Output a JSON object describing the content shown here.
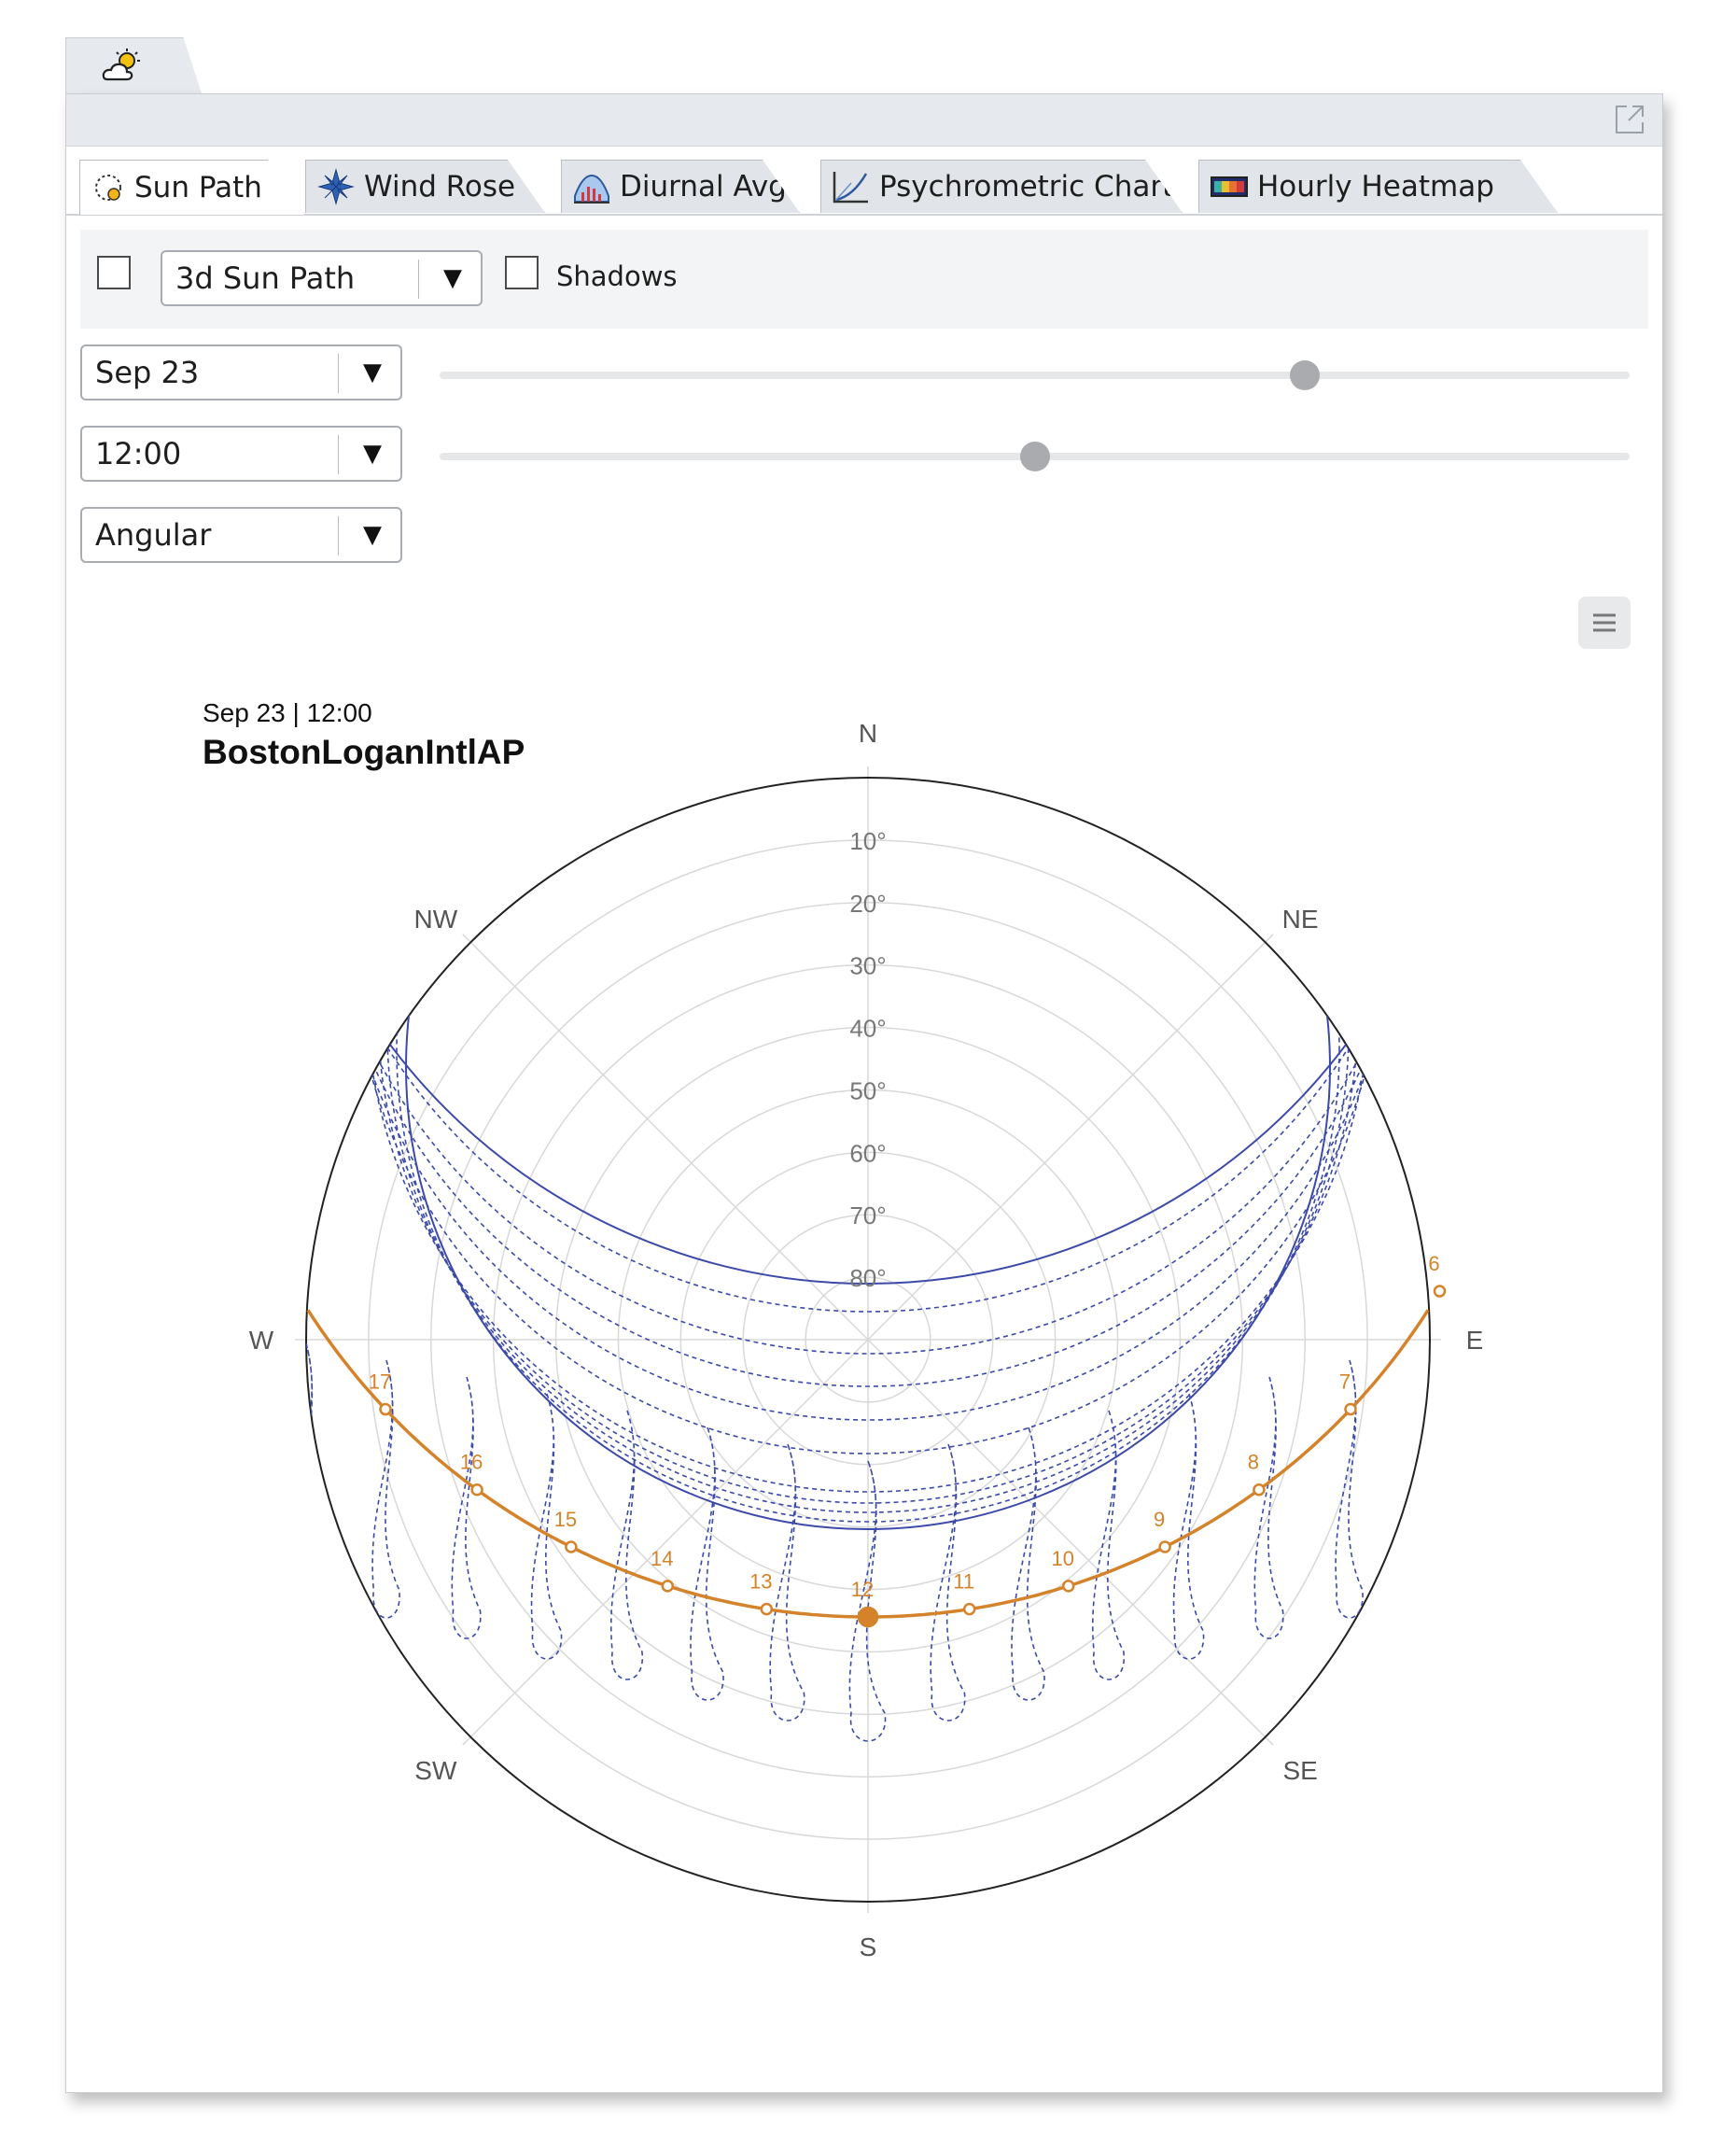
{
  "tabs": [
    {
      "label": "Sun Path",
      "icon": "sun-path-icon",
      "active": true
    },
    {
      "label": "Wind Rose",
      "icon": "wind-rose-icon",
      "active": false
    },
    {
      "label": "Diurnal Avg",
      "icon": "diurnal-avg-icon",
      "active": false
    },
    {
      "label": "Psychrometric Chart",
      "icon": "psychrometric-icon",
      "active": false
    },
    {
      "label": "Hourly Heatmap",
      "icon": "heatmap-icon",
      "active": false
    }
  ],
  "controls": {
    "view_mode": {
      "value": "3d Sun Path",
      "checked": false
    },
    "shadows": {
      "label": "Shadows",
      "checked": false
    },
    "date": {
      "value": "Sep 23",
      "slider_fraction": 0.727
    },
    "time": {
      "value": "12:00",
      "slider_fraction": 0.5
    },
    "projection": {
      "value": "Angular"
    }
  },
  "chart_data": {
    "type": "scatter",
    "projection": "polar (angular) sun path diagram",
    "subtitle": "Sep 23 | 12:00",
    "title": "BostonLoganIntlAP",
    "compass_labels": [
      "N",
      "NE",
      "E",
      "SE",
      "S",
      "SW",
      "W",
      "NW"
    ],
    "altitude_rings": [
      "10°",
      "20°",
      "30°",
      "40°",
      "50°",
      "60°",
      "70°",
      "80°"
    ],
    "hour_labels": [
      "6",
      "7",
      "8",
      "9",
      "10",
      "11",
      "12",
      "13",
      "14",
      "15",
      "16",
      "17"
    ],
    "selected_hour": "12",
    "colors": {
      "sun_path": "#d4832b",
      "annual_paths": "#3b4aa8",
      "grid": "#d8d8d8",
      "outline": "#222222"
    }
  }
}
